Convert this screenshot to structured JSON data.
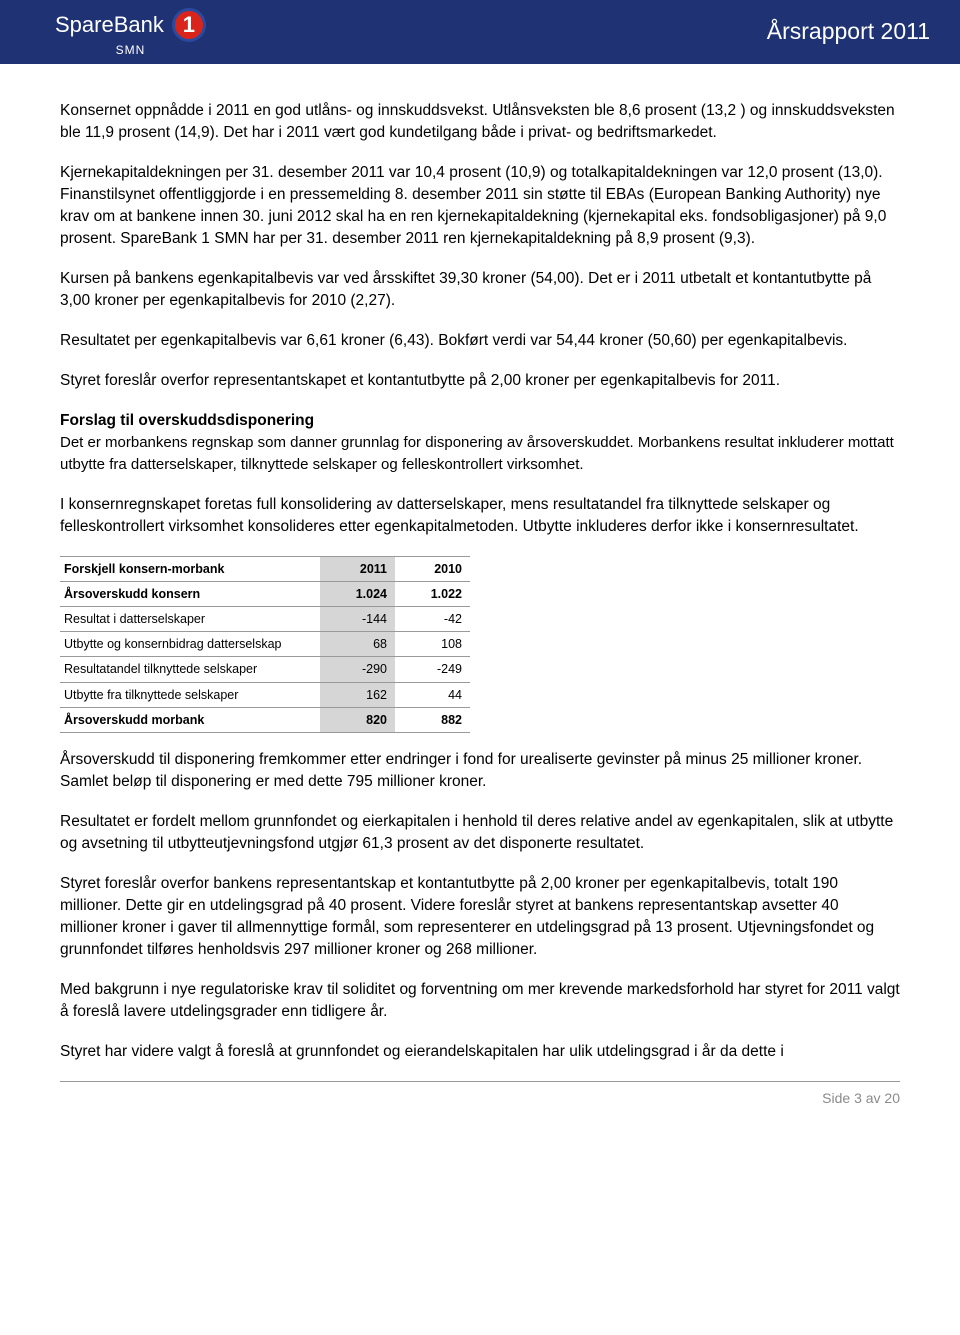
{
  "header": {
    "brand": "SpareBank",
    "sub": "SMN",
    "badge": "1",
    "title": "Årsrapport 2011"
  },
  "paragraphs": {
    "p1": "Konsernet oppnådde i 2011 en god utlåns- og innskuddsvekst. Utlånsveksten ble 8,6 prosent (13,2 ) og innskuddsveksten ble 11,9 prosent (14,9). Det har i 2011 vært god kundetilgang både i privat- og bedriftsmarkedet.",
    "p2": "Kjernekapitaldekningen per 31. desember 2011 var 10,4 prosent (10,9) og totalkapitaldekningen var 12,0 prosent (13,0). Finanstilsynet offentliggjorde i en pressemelding 8. desember 2011 sin støtte til EBAs (European Banking Authority) nye krav om at bankene innen 30. juni 2012 skal ha en ren kjernekapitaldekning (kjernekapital eks. fondsobligasjoner) på 9,0 prosent. SpareBank 1 SMN har per 31. desember 2011 ren kjernekapitaldekning på 8,9 prosent (9,3).",
    "p3": "Kursen på bankens egenkapitalbevis var ved årsskiftet 39,30 kroner (54,00). Det er i 2011 utbetalt et kontantutbytte på 3,00 kroner per egenkapitalbevis for 2010 (2,27).",
    "p4": "Resultatet per egenkapitalbevis var 6,61 kroner (6,43). Bokført verdi var 54,44 kroner (50,60) per egenkapitalbevis.",
    "p5": "Styret foreslår overfor representantskapet et kontantutbytte på 2,00 kroner per egenkapitalbevis for 2011.",
    "sec_heading": "Forslag til overskuddsdisponering",
    "sec_body": "Det er morbankens regnskap som danner grunnlag for disponering av årsoverskuddet. Morbankens resultat inkluderer mottatt utbytte fra datterselskaper, tilknyttede selskaper og felleskontrollert virksomhet.",
    "p6": "I konsernregnskapet foretas full konsolidering av datterselskaper, mens resultatandel fra tilknyttede selskaper og felleskontrollert virksomhet konsolideres etter egenkapitalmetoden. Utbytte inkluderes derfor ikke i konsernresultatet.",
    "p7": "Årsoverskudd til disponering fremkommer etter endringer i fond for urealiserte gevinster på minus 25 millioner kroner. Samlet beløp til disponering er med dette 795 millioner kroner.",
    "p8": "Resultatet er fordelt mellom grunnfondet og eierkapitalen i henhold til deres relative andel av egenkapitalen, slik at utbytte og avsetning til utbytteutjevningsfond utgjør 61,3 prosent av det disponerte resultatet.",
    "p9": "Styret foreslår overfor bankens representantskap et kontantutbytte på 2,00 kroner per egenkapitalbevis, totalt 190 millioner. Dette gir en utdelingsgrad på 40 prosent. Videre foreslår styret at bankens representantskap avsetter 40 millioner kroner i gaver til allmennyttige formål, som representerer en utdelingsgrad på 13 prosent. Utjevningsfondet og grunnfondet tilføres henholdsvis 297 millioner kroner og 268 millioner.",
    "p10": "Med bakgrunn i nye regulatoriske krav til soliditet og forventning om mer krevende markedsforhold har styret for 2011 valgt å foreslå lavere utdelingsgrader enn tidligere år.",
    "p11": "Styret har videre valgt å foreslå at grunnfondet og eierandelskapitalen har ulik utdelingsgrad i år da dette i"
  },
  "table": {
    "columns": [
      "Forskjell konsern-morbank",
      "2011",
      "2010"
    ],
    "rows": [
      {
        "label": "Årsoverskudd konsern",
        "c2011": "1.024",
        "c2010": "1.022",
        "bold": true
      },
      {
        "label": "Resultat i datterselskaper",
        "c2011": "-144",
        "c2010": "-42",
        "bold": false
      },
      {
        "label": "Utbytte og konsernbidrag datterselskap",
        "c2011": "68",
        "c2010": "108",
        "bold": false
      },
      {
        "label": "Resultatandel tilknyttede selskaper",
        "c2011": "-290",
        "c2010": "-249",
        "bold": false
      },
      {
        "label": "Utbytte fra tilknyttede selskaper",
        "c2011": "162",
        "c2010": "44",
        "bold": false
      },
      {
        "label": "Årsoverskudd morbank",
        "c2011": "820",
        "c2010": "882",
        "bold": true
      }
    ]
  },
  "footer": {
    "text": "Side 3 av 20"
  }
}
